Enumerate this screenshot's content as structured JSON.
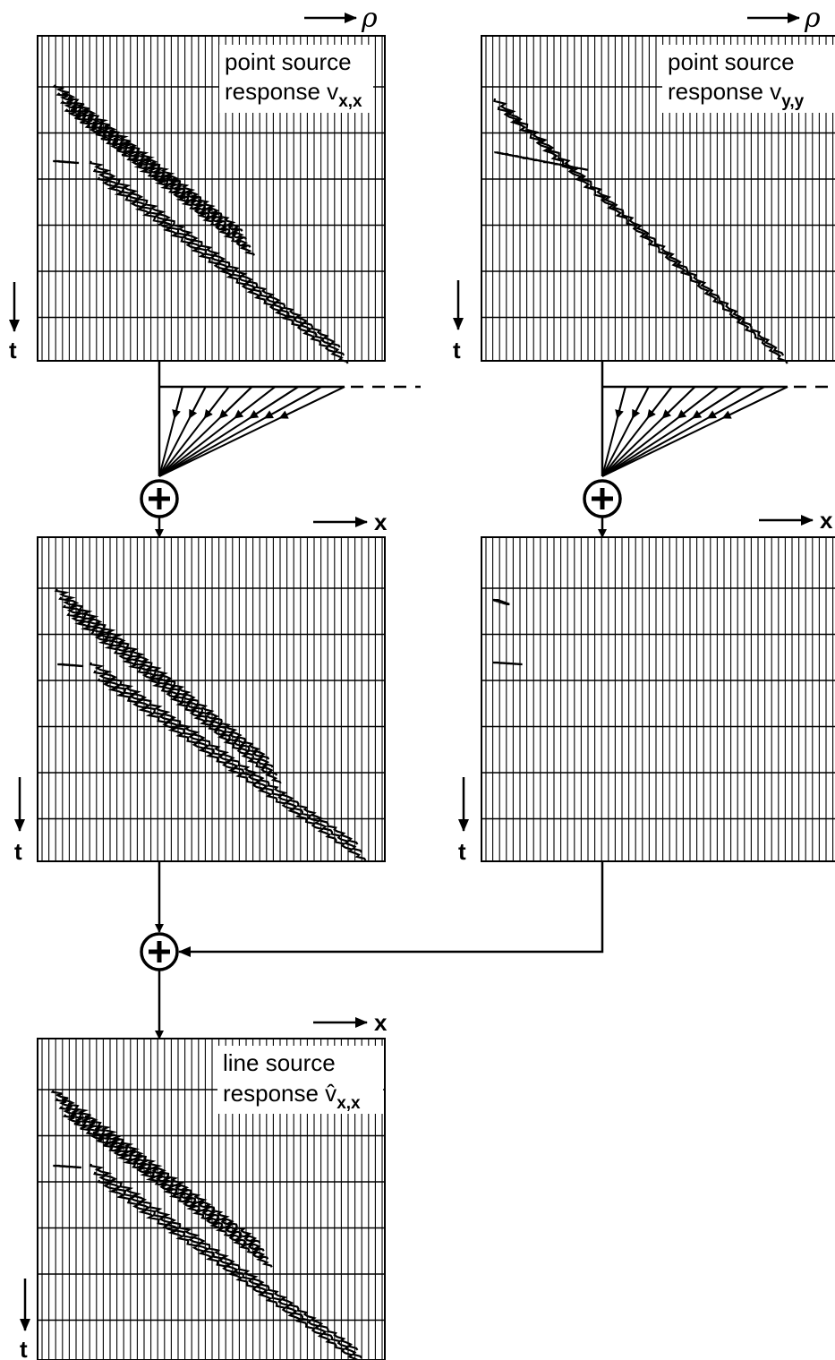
{
  "panels": [
    {
      "h_axis": "ρ",
      "v_axis": "t",
      "caption_line1": "point source",
      "caption_line2": "response v",
      "subscript": "x,x"
    },
    {
      "h_axis": "ρ",
      "v_axis": "t",
      "caption_line1": "point source",
      "caption_line2": "response v",
      "subscript": "y,y"
    },
    {
      "h_axis": "x",
      "v_axis": "t"
    },
    {
      "h_axis": "x",
      "v_axis": "t"
    },
    {
      "h_axis": "x",
      "v_axis": "t",
      "caption_line1": "line source",
      "caption_line2": "response v̂",
      "subscript": "x,x"
    }
  ]
}
